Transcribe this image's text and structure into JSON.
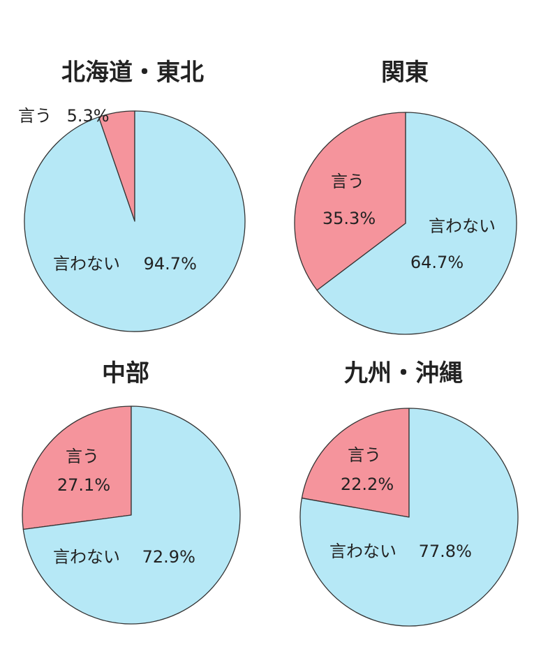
{
  "chart_data": [
    {
      "type": "pie",
      "title": "北海道・東北",
      "categories": [
        "言う",
        "言わない"
      ],
      "values": [
        5.3,
        94.7
      ],
      "value_labels": [
        "5.3%",
        "94.7%"
      ],
      "colors": [
        "#f5949c",
        "#b6e8f6"
      ]
    },
    {
      "type": "pie",
      "title": "関東",
      "categories": [
        "言う",
        "言わない"
      ],
      "values": [
        35.3,
        64.7
      ],
      "value_labels": [
        "35.3%",
        "64.7%"
      ],
      "colors": [
        "#f5949c",
        "#b6e8f6"
      ]
    },
    {
      "type": "pie",
      "title": "中部",
      "categories": [
        "言う",
        "言わない"
      ],
      "values": [
        27.1,
        72.9
      ],
      "value_labels": [
        "27.1%",
        "72.9%"
      ],
      "colors": [
        "#f5949c",
        "#b6e8f6"
      ]
    },
    {
      "type": "pie",
      "title": "九州・沖縄",
      "categories": [
        "言う",
        "言わない"
      ],
      "values": [
        22.2,
        77.8
      ],
      "value_labels": [
        "22.2%",
        "77.8%"
      ],
      "colors": [
        "#f5949c",
        "#b6e8f6"
      ]
    }
  ]
}
